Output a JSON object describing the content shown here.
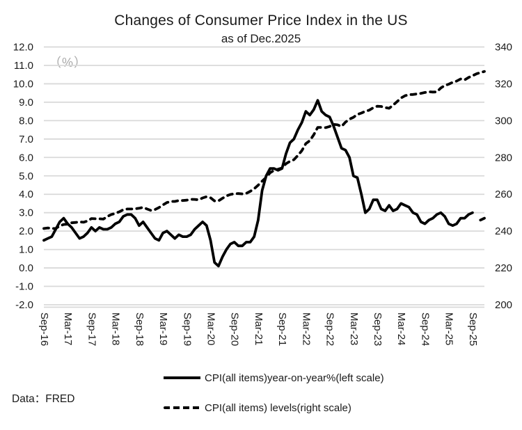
{
  "title": "Changes of Consumer Price Index in the US",
  "subtitle": "as of Dec.2025",
  "unit_label": "（%）",
  "source": "Data：FRED",
  "colors": {
    "line": "#000000",
    "gridline": "#d9d9d9",
    "text": "#1a1a1a",
    "unit_label_gray": "#a9a9a9",
    "background": "#ffffff"
  },
  "chart_data": {
    "type": "line",
    "title": "Changes of Consumer Price Index in the US",
    "subtitle": "as of Dec.2025",
    "grid": "horizontal",
    "legend_position": "bottom",
    "left_axis": {
      "label": "（%）",
      "max": 12.0,
      "min": -2.0,
      "step": 1.0,
      "tick_labels": [
        "12.0",
        "11.0",
        "10.0",
        "9.0",
        "8.0",
        "7.0",
        "6.0",
        "5.0",
        "4.0",
        "3.0",
        "2.0",
        "1.0",
        "0.0",
        "-1.0",
        "-2.0"
      ]
    },
    "right_axis": {
      "max": 340,
      "min": 200,
      "step": 20,
      "tick_labels": [
        "340",
        "320",
        "300",
        "280",
        "260",
        "240",
        "220",
        "200"
      ]
    },
    "x_tick_labels": [
      "Sep-16",
      "Mar-17",
      "Sep-17",
      "Mar-18",
      "Sep-18",
      "Mar-19",
      "Sep-19",
      "Mar-20",
      "Sep-20",
      "Mar-21",
      "Sep-21",
      "Mar-22",
      "Sep-22",
      "Mar-23",
      "Sep-23",
      "Mar-24",
      "Sep-24",
      "Mar-25",
      "Sep-25"
    ],
    "x": [
      "Sep-16",
      "Oct-16",
      "Nov-16",
      "Dec-16",
      "Jan-17",
      "Feb-17",
      "Mar-17",
      "Apr-17",
      "May-17",
      "Jun-17",
      "Jul-17",
      "Aug-17",
      "Sep-17",
      "Oct-17",
      "Nov-17",
      "Dec-17",
      "Jan-18",
      "Feb-18",
      "Mar-18",
      "Apr-18",
      "May-18",
      "Jun-18",
      "Jul-18",
      "Aug-18",
      "Sep-18",
      "Oct-18",
      "Nov-18",
      "Dec-18",
      "Jan-19",
      "Feb-19",
      "Mar-19",
      "Apr-19",
      "May-19",
      "Jun-19",
      "Jul-19",
      "Aug-19",
      "Sep-19",
      "Oct-19",
      "Nov-19",
      "Dec-19",
      "Jan-20",
      "Feb-20",
      "Mar-20",
      "Apr-20",
      "May-20",
      "Jun-20",
      "Jul-20",
      "Aug-20",
      "Sep-20",
      "Oct-20",
      "Nov-20",
      "Dec-20",
      "Jan-21",
      "Feb-21",
      "Mar-21",
      "Apr-21",
      "May-21",
      "Jun-21",
      "Jul-21",
      "Aug-21",
      "Sep-21",
      "Oct-21",
      "Nov-21",
      "Dec-21",
      "Jan-22",
      "Feb-22",
      "Mar-22",
      "Apr-22",
      "May-22",
      "Jun-22",
      "Jul-22",
      "Aug-22",
      "Sep-22",
      "Oct-22",
      "Nov-22",
      "Dec-22",
      "Jan-23",
      "Feb-23",
      "Mar-23",
      "Apr-23",
      "May-23",
      "Jun-23",
      "Jul-23",
      "Aug-23",
      "Sep-23",
      "Oct-23",
      "Nov-23",
      "Dec-23",
      "Jan-24",
      "Feb-24",
      "Mar-24",
      "Apr-24",
      "May-24",
      "Jun-24",
      "Jul-24",
      "Aug-24",
      "Sep-24",
      "Oct-24",
      "Nov-24",
      "Dec-24",
      "Jan-25",
      "Feb-25",
      "Mar-25",
      "Apr-25",
      "May-25",
      "Jun-25",
      "Jul-25",
      "Aug-25",
      "Sep-25",
      "Oct-25",
      "Nov-25",
      "Dec-25"
    ],
    "series": [
      {
        "name": "CPI(all items)year-on-year%(left scale)",
        "axis": "left",
        "style": "solid",
        "values": [
          1.5,
          1.6,
          1.7,
          2.1,
          2.5,
          2.7,
          2.4,
          2.2,
          1.9,
          1.6,
          1.7,
          1.9,
          2.2,
          2.0,
          2.2,
          2.1,
          2.1,
          2.2,
          2.4,
          2.5,
          2.8,
          2.9,
          2.9,
          2.7,
          2.3,
          2.5,
          2.2,
          1.9,
          1.6,
          1.5,
          1.9,
          2.0,
          1.8,
          1.6,
          1.8,
          1.7,
          1.7,
          1.8,
          2.1,
          2.3,
          2.5,
          2.3,
          1.5,
          0.3,
          0.1,
          0.6,
          1.0,
          1.3,
          1.4,
          1.2,
          1.2,
          1.4,
          1.4,
          1.7,
          2.6,
          4.2,
          5.0,
          5.4,
          5.4,
          5.3,
          5.4,
          6.2,
          6.8,
          7.0,
          7.5,
          7.9,
          8.5,
          8.3,
          8.6,
          9.1,
          8.5,
          8.3,
          8.2,
          7.7,
          7.1,
          6.5,
          6.4,
          6.0,
          5.0,
          4.9,
          4.0,
          3.0,
          3.2,
          3.7,
          3.7,
          3.2,
          3.1,
          3.4,
          3.1,
          3.2,
          3.5,
          3.4,
          3.3,
          3.0,
          2.9,
          2.5,
          2.4,
          2.6,
          2.7,
          2.9,
          3.0,
          2.8,
          2.4,
          2.3,
          2.4,
          2.7,
          2.7,
          2.9,
          3.0,
          null,
          2.6,
          2.7
        ]
      },
      {
        "name": "CPI(all items) levels(right scale)",
        "axis": "right",
        "style": "dashed",
        "values": [
          241.4,
          241.7,
          241.4,
          241.4,
          242.8,
          243.6,
          243.8,
          244.5,
          244.7,
          245.0,
          244.8,
          245.5,
          246.8,
          246.7,
          246.7,
          246.5,
          247.9,
          249.0,
          249.6,
          250.5,
          251.6,
          252.0,
          252.0,
          252.1,
          252.4,
          252.9,
          252.0,
          251.2,
          251.7,
          252.8,
          254.2,
          255.5,
          256.1,
          256.1,
          256.6,
          256.6,
          256.8,
          257.3,
          257.2,
          257.0,
          258.0,
          258.7,
          258.1,
          256.4,
          256.4,
          257.8,
          259.1,
          259.9,
          260.3,
          260.4,
          260.2,
          260.5,
          261.6,
          263.0,
          264.9,
          267.1,
          269.2,
          271.7,
          273.0,
          273.6,
          274.3,
          276.6,
          277.9,
          278.8,
          281.1,
          283.7,
          287.5,
          289.1,
          292.3,
          296.3,
          296.3,
          296.2,
          296.8,
          298.0,
          297.7,
          296.8,
          299.2,
          300.8,
          301.8,
          303.4,
          304.1,
          305.1,
          305.7,
          307.0,
          307.8,
          307.7,
          307.1,
          306.7,
          308.4,
          310.3,
          312.3,
          313.5,
          314.1,
          314.2,
          314.5,
          314.8,
          315.3,
          315.7,
          315.5,
          315.6,
          317.7,
          319.1,
          319.8,
          320.8,
          321.5,
          322.6,
          322.1,
          323.4,
          324.4,
          325.4,
          326.1,
          326.7
        ]
      }
    ]
  }
}
